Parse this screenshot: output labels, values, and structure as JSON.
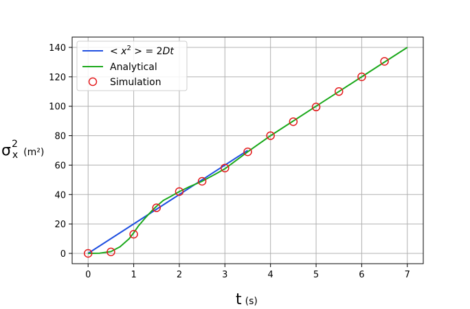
{
  "chart_data": {
    "type": "line",
    "title": "",
    "xlabel": {
      "main": "t",
      "unit": "(s)"
    },
    "ylabel": {
      "main": "σ",
      "sup": "2",
      "sub": "x",
      "unit": "(m²)"
    },
    "xlim": [
      -0.35,
      7.35
    ],
    "ylim": [
      -7,
      147
    ],
    "xticks": [
      0,
      1,
      2,
      3,
      4,
      5,
      6,
      7
    ],
    "yticks": [
      0,
      20,
      40,
      60,
      80,
      100,
      120,
      140
    ],
    "grid": true,
    "legend_position": "top-left",
    "series": [
      {
        "name": "< x² > = 2Dt",
        "label_parts": {
          "pre": "< x",
          "sup": "2",
          "post": " > = 2",
          "italic": "Dt"
        },
        "kind": "line",
        "color": "#1f4fe0",
        "x": [
          0,
          3.5
        ],
        "y": [
          0,
          70
        ]
      },
      {
        "name": "Analytical",
        "kind": "line",
        "color": "#1aa81a",
        "x": [
          0,
          0.25,
          0.5,
          0.7,
          0.9,
          1.0,
          1.1,
          1.25,
          1.4,
          1.5,
          1.65,
          1.8,
          2.0,
          2.2,
          2.5,
          2.8,
          3.0,
          3.5,
          4.0,
          4.5,
          5.0,
          5.5,
          6.0,
          6.5,
          7.0
        ],
        "y": [
          0,
          0.1,
          1.2,
          4.5,
          10,
          14,
          18.5,
          24,
          29,
          32,
          36,
          38.5,
          42,
          45,
          49,
          54,
          57.5,
          69,
          80,
          90,
          100,
          110,
          120,
          130,
          140
        ]
      },
      {
        "name": "Simulation",
        "kind": "scatter",
        "color": "#e41a1c",
        "x": [
          0,
          0.5,
          1.0,
          1.5,
          2.0,
          2.5,
          3.0,
          3.5,
          4.0,
          4.5,
          5.0,
          5.5,
          6.0,
          6.5
        ],
        "y": [
          0,
          1,
          13,
          31,
          42,
          49,
          58,
          69,
          80,
          89.5,
          99.5,
          110,
          120,
          130.5
        ]
      }
    ]
  }
}
